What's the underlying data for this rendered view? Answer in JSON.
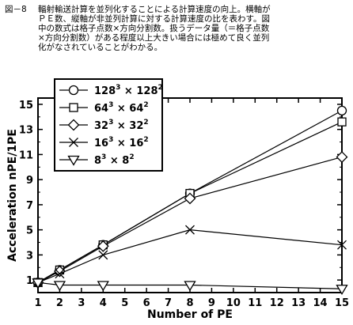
{
  "caption": {
    "label": "図－8",
    "lines": [
      "輻射輸送計算を並列化することによる計算速度の向上。横軸が",
      "ＰＥ数、縦軸が非並列計算に対する計算速度の比を表わす。図",
      "中の数式は格子点数×方向分割数。扱うデータ量（＝格子点数",
      "×方向分割数）がある程度以上大きい場合には極めて良く並列",
      "化がなされていることがわかる。"
    ]
  },
  "chart_data": {
    "type": "line",
    "xlabel": "Number of PE",
    "ylabel": "Acceleration nPE/1PE",
    "xlim": [
      1,
      15
    ],
    "ylim": [
      0,
      15.5
    ],
    "xticks": [
      1,
      2,
      3,
      4,
      5,
      6,
      7,
      8,
      9,
      10,
      11,
      12,
      13,
      14,
      15
    ],
    "yticks": [
      1,
      3,
      5,
      7,
      9,
      11,
      13,
      15
    ],
    "grid": false,
    "legend_position": "top-left",
    "series": [
      {
        "name": "128",
        "name_exp": "3",
        "factor": "128",
        "factor_exp": "2",
        "marker": "circle",
        "x": [
          1,
          2,
          4,
          8,
          15
        ],
        "y": [
          0.8,
          1.8,
          3.8,
          7.9,
          14.5
        ]
      },
      {
        "name": "64",
        "name_exp": "3",
        "factor": "64",
        "factor_exp": "2",
        "marker": "square",
        "x": [
          1,
          2,
          4,
          8,
          15
        ],
        "y": [
          0.8,
          1.8,
          3.8,
          7.9,
          13.6
        ]
      },
      {
        "name": "32",
        "name_exp": "3",
        "factor": "32",
        "factor_exp": "2",
        "marker": "diamond",
        "x": [
          1,
          2,
          4,
          8,
          15
        ],
        "y": [
          0.8,
          1.7,
          3.7,
          7.5,
          10.8
        ]
      },
      {
        "name": "16",
        "name_exp": "3",
        "factor": "16",
        "factor_exp": "2",
        "marker": "x",
        "x": [
          1,
          2,
          4,
          8,
          15
        ],
        "y": [
          0.8,
          1.5,
          3.0,
          5.0,
          3.8
        ]
      },
      {
        "name": "8",
        "name_exp": "3",
        "factor": "8",
        "factor_exp": "2",
        "marker": "triangle-down",
        "x": [
          1,
          2,
          4,
          8,
          15
        ],
        "y": [
          0.8,
          0.6,
          0.6,
          0.6,
          0.3
        ]
      }
    ],
    "times_symbol": "×"
  }
}
